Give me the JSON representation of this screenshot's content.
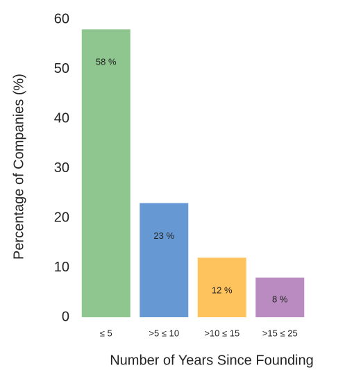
{
  "chart_data": {
    "type": "bar",
    "x_label": "Number of Years Since Founding",
    "y_label": "Percentage of Companies (%)",
    "categories": [
      "≤ 5",
      ">5 ≤ 10",
      ">10 ≤ 15",
      ">15 ≤ 25"
    ],
    "values": [
      58,
      23,
      12,
      8
    ],
    "value_labels": [
      "58 %",
      "23 %",
      "12 %",
      "8 %"
    ],
    "colors": [
      "#8fc68f",
      "#6699d4",
      "#ffc35e",
      "#b98bc0"
    ],
    "ylim": [
      0,
      60
    ],
    "yticks": [
      0,
      10,
      20,
      30,
      40,
      50,
      60
    ],
    "grid": false
  }
}
